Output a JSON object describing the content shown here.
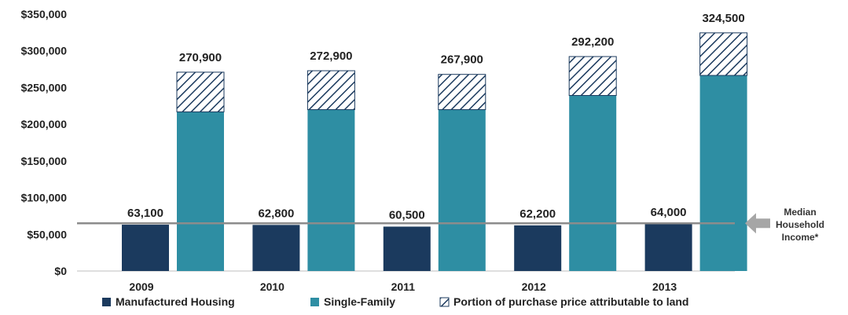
{
  "chart_data": {
    "type": "bar",
    "categories": [
      "2009",
      "2010",
      "2011",
      "2012",
      "2013"
    ],
    "series": [
      {
        "name": "Manufactured Housing",
        "values": [
          63100,
          62800,
          60500,
          62200,
          64000
        ],
        "data_labels": [
          "63,100",
          "62,800",
          "60,500",
          "62,200",
          "64,000"
        ]
      },
      {
        "name": "Single-Family",
        "values": [
          270900,
          272900,
          267900,
          292200,
          324500
        ],
        "data_labels": [
          "270,900",
          "272,900",
          "267,900",
          "292,200",
          "324,500"
        ]
      },
      {
        "name": "Portion of purchase price attributable to land",
        "land_portion_values": [
          54000,
          53000,
          48000,
          53000,
          58000
        ]
      }
    ],
    "ylim": [
      0,
      350000
    ],
    "y_ticks": [
      0,
      50000,
      100000,
      150000,
      200000,
      250000,
      300000,
      350000
    ],
    "y_tick_labels": [
      "$0",
      "$50,000",
      "$100,000",
      "$150,000",
      "$200,000",
      "$250,000",
      "$300,000",
      "$350,000"
    ],
    "reference_line": {
      "value": 65000,
      "label_lines": [
        "Median",
        "Household",
        "Income*"
      ]
    },
    "legend_position": "bottom",
    "grid": false,
    "colors": {
      "manufactured": "#1b3a5e",
      "single_family": "#2e8ea3",
      "hatch": "#1b3a5e",
      "reference_line": "#8c8c8c",
      "arrow": "#a6a6a6"
    }
  }
}
